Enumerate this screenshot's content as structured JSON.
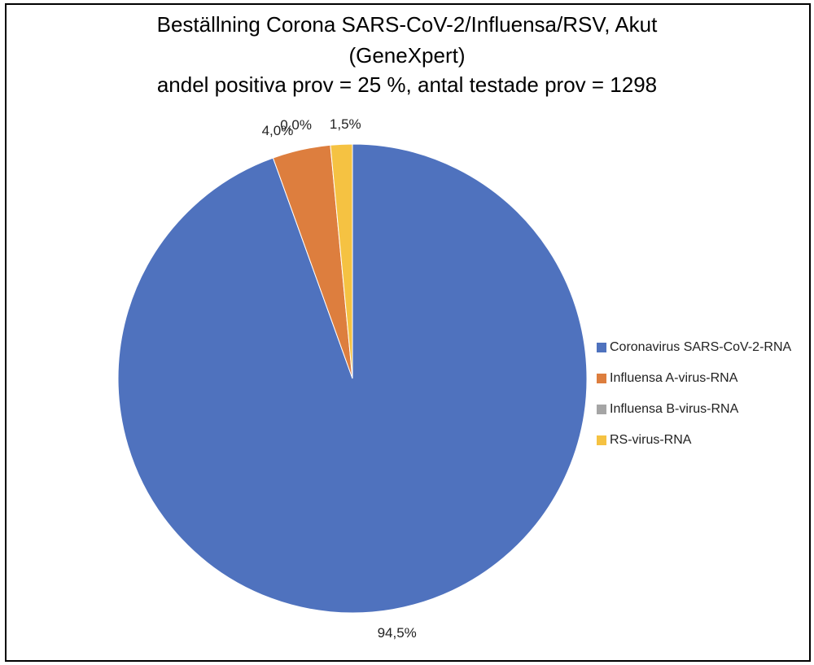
{
  "chart_data": {
    "type": "pie",
    "title": "Beställning Corona SARS-CoV-2/Influensa/RSV, Akut",
    "title_line_2": "(GeneXpert)",
    "subtitle": "andel positiva prov = 25 %,  antal testade prov = 1298",
    "start": "12 o'clock",
    "direction": "clockwise",
    "legend_position": "right",
    "categories": [
      "Coronavirus SARS-CoV-2-RNA",
      "Influensa A-virus-RNA",
      "Influensa B-virus-RNA",
      "RS-virus-RNA"
    ],
    "values": [
      94.5,
      4.0,
      0.0,
      1.5
    ],
    "value_labels": [
      "94,5%",
      "4,0%",
      "0,0%",
      "1,5%"
    ],
    "colors": [
      "#4F72BE",
      "#DD7E3E",
      "#A5A5A5",
      "#F5C242"
    ]
  }
}
